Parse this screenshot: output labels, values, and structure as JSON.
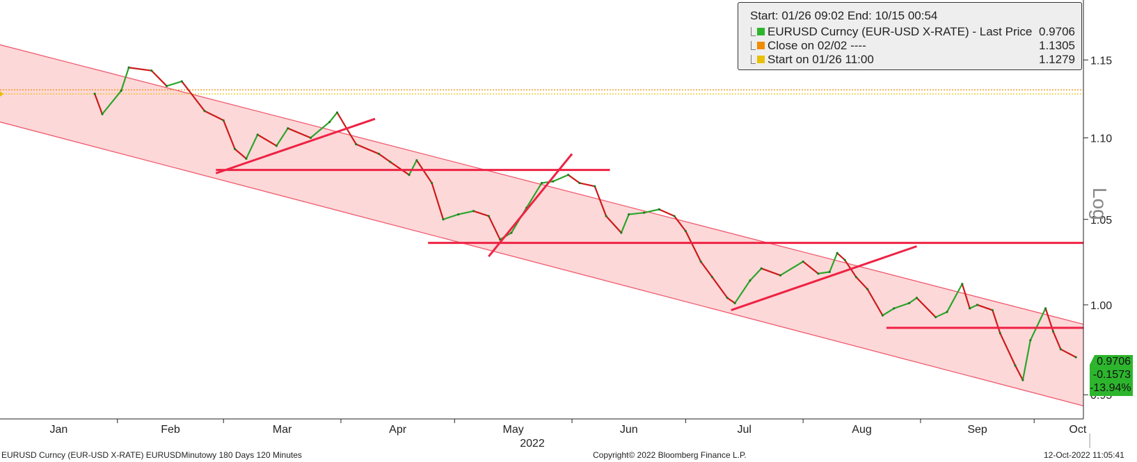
{
  "chart_data": {
    "type": "line",
    "title": "",
    "xlabel": "2022",
    "ylabel": "",
    "scale_label": "Log",
    "y_scale": "log",
    "x_tick_labels": [
      "Jan",
      "Feb",
      "Mar",
      "Apr",
      "May",
      "Jun",
      "Jul",
      "Aug",
      "Sep",
      "Oct"
    ],
    "y_tick_labels": [
      "1.15",
      "1.10",
      "1.05",
      "1.00",
      "0.95"
    ],
    "ylim": [
      0.937,
      1.19
    ],
    "legend_position": "top-right",
    "series": [
      {
        "name": "EURUSD Curncy (EUR-USD X-RATE) - Last Price",
        "color": "#2db52d",
        "points": [
          [
            "2022-01-26",
            1.128
          ],
          [
            "2022-01-28",
            1.115
          ],
          [
            "2022-02-02",
            1.13
          ],
          [
            "2022-02-04",
            1.145
          ],
          [
            "2022-02-10",
            1.143
          ],
          [
            "2022-02-14",
            1.133
          ],
          [
            "2022-02-18",
            1.136
          ],
          [
            "2022-02-24",
            1.117
          ],
          [
            "2022-03-01",
            1.111
          ],
          [
            "2022-03-04",
            1.093
          ],
          [
            "2022-03-07",
            1.087
          ],
          [
            "2022-03-10",
            1.102
          ],
          [
            "2022-03-15",
            1.095
          ],
          [
            "2022-03-18",
            1.106
          ],
          [
            "2022-03-24",
            1.1
          ],
          [
            "2022-03-29",
            1.11
          ],
          [
            "2022-03-31",
            1.116
          ],
          [
            "2022-04-05",
            1.096
          ],
          [
            "2022-04-11",
            1.09
          ],
          [
            "2022-04-14",
            1.085
          ],
          [
            "2022-04-19",
            1.077
          ],
          [
            "2022-04-21",
            1.086
          ],
          [
            "2022-04-25",
            1.072
          ],
          [
            "2022-04-28",
            1.05
          ],
          [
            "2022-05-02",
            1.053
          ],
          [
            "2022-05-06",
            1.055
          ],
          [
            "2022-05-10",
            1.052
          ],
          [
            "2022-05-13",
            1.038
          ],
          [
            "2022-05-16",
            1.042
          ],
          [
            "2022-05-20",
            1.057
          ],
          [
            "2022-05-24",
            1.072
          ],
          [
            "2022-05-27",
            1.073
          ],
          [
            "2022-05-31",
            1.077
          ],
          [
            "2022-06-03",
            1.072
          ],
          [
            "2022-06-07",
            1.07
          ],
          [
            "2022-06-10",
            1.052
          ],
          [
            "2022-06-14",
            1.042
          ],
          [
            "2022-06-16",
            1.053
          ],
          [
            "2022-06-20",
            1.054
          ],
          [
            "2022-06-24",
            1.056
          ],
          [
            "2022-06-28",
            1.052
          ],
          [
            "2022-07-01",
            1.043
          ],
          [
            "2022-07-05",
            1.025
          ],
          [
            "2022-07-08",
            1.016
          ],
          [
            "2022-07-12",
            1.004
          ],
          [
            "2022-07-14",
            1.001
          ],
          [
            "2022-07-18",
            1.014
          ],
          [
            "2022-07-21",
            1.021
          ],
          [
            "2022-07-26",
            1.017
          ],
          [
            "2022-08-01",
            1.025
          ],
          [
            "2022-08-05",
            1.018
          ],
          [
            "2022-08-08",
            1.019
          ],
          [
            "2022-08-10",
            1.03
          ],
          [
            "2022-08-12",
            1.026
          ],
          [
            "2022-08-15",
            1.016
          ],
          [
            "2022-08-18",
            1.009
          ],
          [
            "2022-08-22",
            0.994
          ],
          [
            "2022-08-25",
            0.998
          ],
          [
            "2022-08-29",
            1.001
          ],
          [
            "2022-08-31",
            1.004
          ],
          [
            "2022-09-05",
            0.993
          ],
          [
            "2022-09-08",
            0.996
          ],
          [
            "2022-09-12",
            1.012
          ],
          [
            "2022-09-14",
            0.998
          ],
          [
            "2022-09-16",
            1.0
          ],
          [
            "2022-09-20",
            0.997
          ],
          [
            "2022-09-22",
            0.984
          ],
          [
            "2022-09-26",
            0.966
          ],
          [
            "2022-09-28",
            0.958
          ],
          [
            "2022-09-30",
            0.98
          ],
          [
            "2022-10-04",
            0.998
          ],
          [
            "2022-10-06",
            0.985
          ],
          [
            "2022-10-08",
            0.975
          ],
          [
            "2022-10-12",
            0.9706
          ]
        ]
      },
      {
        "name": "Close on 02/02",
        "color": "#f08c00",
        "value": 1.1305
      },
      {
        "name": "Start on 01/26 11:00",
        "color": "#e8c000",
        "value": 1.1279
      }
    ],
    "annotations": {
      "channel": {
        "color": "#f05a6e",
        "fill": "#fdd8d8",
        "upper": [
          [
            "2022-01-01",
            1.16
          ],
          [
            "2022-10-14",
            0.989
          ]
        ],
        "lower": [
          [
            "2022-01-01",
            1.11
          ],
          [
            "2022-10-14",
            0.944
          ]
        ]
      },
      "trendlines": [
        {
          "color": "#ee2244",
          "from": [
            "2022-02-27",
            1.078
          ],
          "to": [
            "2022-04-10",
            1.112
          ]
        },
        {
          "color": "#ee2244",
          "from": [
            "2022-02-27",
            1.08
          ],
          "to": [
            "2022-06-11",
            1.08
          ]
        },
        {
          "color": "#ee2244",
          "from": [
            "2022-05-10",
            1.028
          ],
          "to": [
            "2022-06-01",
            1.09
          ]
        },
        {
          "color": "#ee2244",
          "from": [
            "2022-04-24",
            1.036
          ],
          "to": [
            "2022-10-14",
            1.036
          ]
        },
        {
          "color": "#ee2244",
          "from": [
            "2022-07-13",
            0.997
          ],
          "to": [
            "2022-08-31",
            1.034
          ]
        },
        {
          "color": "#ee2244",
          "from": [
            "2022-08-23",
            0.987
          ],
          "to": [
            "2022-10-14",
            0.987
          ]
        }
      ]
    }
  },
  "legend": {
    "header": "Start: 01/26 09:02 End: 10/15 00:54",
    "rows": [
      {
        "label": "EURUSD Curncy (EUR-USD X-RATE) - Last Price",
        "value": "0.9706",
        "color": "#2db52d"
      },
      {
        "label": "Close on 02/02 ----",
        "value": "1.1305",
        "color": "#f08c00"
      },
      {
        "label": "Start on 01/26 11:00",
        "value": "1.1279",
        "color": "#e8c000"
      }
    ]
  },
  "badge": {
    "last": "0.9706",
    "change": "-0.1573",
    "pct": "-13.94%"
  },
  "footer": {
    "left": "EURUSD Curncy (EUR-USD X-RATE) EURUSDMinutowy 180 Days 120 Minutes",
    "center": "Copyright© 2022 Bloomberg Finance L.P.",
    "right": "12-Oct-2022 11:05:41"
  }
}
